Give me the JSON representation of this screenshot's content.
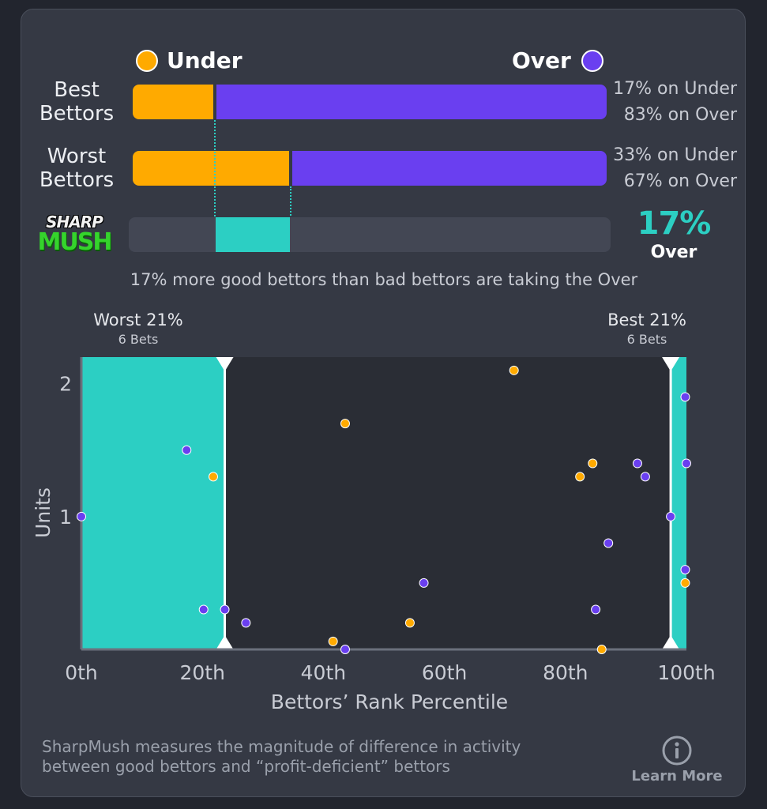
{
  "colors": {
    "under": "#ffaa00",
    "over": "#6a3ff0",
    "mush": "#2ccfc3",
    "panel": "#353944",
    "plot_bg": "#2a2d35"
  },
  "legend": {
    "under": "Under",
    "over": "Over"
  },
  "rows": [
    {
      "label_line1": "Best",
      "label_line2": "Bettors",
      "under_pct": 17,
      "over_pct": 83,
      "under_text": "17% on Under",
      "over_text": "83% on Over"
    },
    {
      "label_line1": "Worst",
      "label_line2": "Bettors",
      "under_pct": 33,
      "over_pct": 67,
      "under_text": "33% on Under",
      "over_text": "67% on Over"
    }
  ],
  "sharpmush": {
    "logo_top": "SHARP",
    "logo_bottom": "MUSH",
    "value": "17%",
    "direction": "Over",
    "summary": "17% more good bettors than bad bettors are taking the Over"
  },
  "chart_data": {
    "type": "scatter",
    "xlabel": "Bettors’ Rank Percentile",
    "ylabel": "Units",
    "xlim": [
      0,
      100
    ],
    "ylim": [
      0,
      2.2
    ],
    "x_ticks": [
      0,
      20,
      40,
      60,
      80,
      100
    ],
    "x_tick_labels": [
      "0th",
      "20th",
      "40th",
      "60th",
      "80th",
      "100th"
    ],
    "y_ticks": [
      1,
      2
    ],
    "y_tick_labels": [
      "1",
      "2"
    ],
    "regions": [
      {
        "name": "worst",
        "label": "Worst 21%",
        "sublabel": "6 Bets",
        "from": 0,
        "to": 23.7
      },
      {
        "name": "best",
        "label": "Best 21%",
        "sublabel": "6 Bets",
        "from": 97.4,
        "to": 100
      }
    ],
    "series": [
      {
        "name": "Under",
        "color": "#ffaa00",
        "points": [
          [
            21.8,
            1.3
          ],
          [
            43.6,
            1.7
          ],
          [
            41.6,
            0.06
          ],
          [
            54.3,
            0.2
          ],
          [
            71.5,
            2.1
          ],
          [
            82.4,
            1.3
          ],
          [
            84.5,
            1.4
          ],
          [
            86.0,
            0.0
          ],
          [
            99.8,
            0.5
          ]
        ]
      },
      {
        "name": "Over",
        "color": "#6a3ff0",
        "points": [
          [
            0.0,
            1.0
          ],
          [
            17.4,
            1.5
          ],
          [
            20.2,
            0.3
          ],
          [
            23.7,
            0.3
          ],
          [
            27.2,
            0.2
          ],
          [
            43.6,
            0.0
          ],
          [
            56.6,
            0.5
          ],
          [
            85.0,
            0.3
          ],
          [
            87.1,
            0.8
          ],
          [
            91.9,
            1.4
          ],
          [
            93.2,
            1.3
          ],
          [
            97.4,
            1.0
          ],
          [
            99.8,
            1.9
          ],
          [
            100.0,
            1.4
          ],
          [
            99.8,
            0.6
          ]
        ]
      }
    ]
  },
  "footer": {
    "text_line1": "SharpMush measures the magnitude of difference in activity",
    "text_line2": "between good bettors and “profit-deficient” bettors",
    "learn_more": "Learn More"
  }
}
